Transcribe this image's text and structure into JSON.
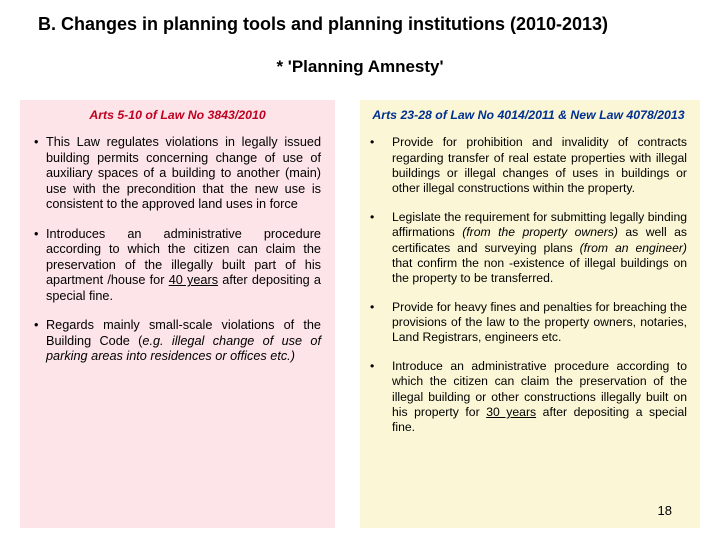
{
  "title": "B. Changes in planning tools and planning institutions (2010-2013)",
  "subtitle": "*   'Planning Amnesty'",
  "left": {
    "header": "Arts 5-10 of Law No 3843/2010",
    "header_color": "#c00020",
    "bg_color": "#fce4e9",
    "bullets": [
      "This Law regulates violations in legally issued building permits concerning change of use of auxiliary spaces of a building to another (main) use with the precondition that the new use is consistent to the approved land uses in force",
      "Introduces an administrative procedure according to which the citizen can claim the preservation of the illegally built part of his apartment /house for <u>40 years</u> after depositing a special fine.",
      "Regards mainly small-scale violations of the Building Code (<i>e.g. illegal change of use of parking areas into residences or offices etc.)</i>"
    ]
  },
  "right": {
    "header": "Arts 23-28 of Law No 4014/2011  &  New Law 4078/2013",
    "header_color": "#003090",
    "bg_color": "#fbf7d6",
    "bullets": [
      "Provide for prohibition and invalidity of contracts regarding  transfer of real estate properties with illegal buildings or illegal changes of uses in buildings or other illegal constructions within the property.",
      "Legislate the requirement for submitting legally binding affirmations <i>(from the property owners)</i> as well as certificates and surveying plans <i>(from an engineer)</i> that confirm the non -existence of illegal buildings on the property to be transferred.",
      "Provide for heavy fines and penalties for breaching the provisions of the law to the property owners, notaries, Land Registrars, engineers etc.",
      "Introduce an administrative procedure according to which the citizen can claim the preservation of the illegal building or other constructions illegally built on his property for <u>30 years</u> after depositing a special fine."
    ]
  },
  "page_number": "18"
}
